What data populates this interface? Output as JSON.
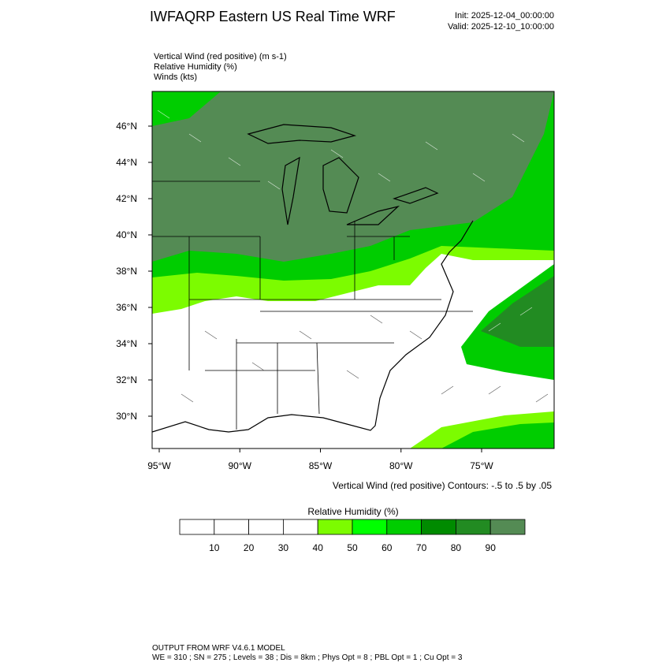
{
  "header": {
    "title": "IWFAQRP Eastern US Real Time WRF",
    "init": "Init: 2025-12-04_00:00:00",
    "valid": "Valid: 2025-12-10_10:00:00"
  },
  "fields": [
    "Vertical Wind (red positive)   (m s-1)",
    "Relative Humidity   (%)",
    "Winds   (kts)"
  ],
  "map": {
    "lon_ticks": [
      {
        "value": -95,
        "label": "95°W"
      },
      {
        "value": -90,
        "label": "90°W"
      },
      {
        "value": -85,
        "label": "85°W"
      },
      {
        "value": -80,
        "label": "80°W"
      },
      {
        "value": -75,
        "label": "75°W"
      }
    ],
    "lat_ticks": [
      {
        "value": 46,
        "label": "46°N"
      },
      {
        "value": 44,
        "label": "44°N"
      },
      {
        "value": 42,
        "label": "42°N"
      },
      {
        "value": 40,
        "label": "40°N"
      },
      {
        "value": 38,
        "label": "38°N"
      },
      {
        "value": 36,
        "label": "36°N"
      },
      {
        "value": 34,
        "label": "34°N"
      },
      {
        "value": 32,
        "label": "32°N"
      },
      {
        "value": 30,
        "label": "30°N"
      }
    ],
    "contour_note": "Vertical Wind (red positive) Contours: -.5 to .5 by .05"
  },
  "colorbar": {
    "title": "Relative Humidity  (%)",
    "levels": [
      10,
      20,
      30,
      40,
      50,
      60,
      70,
      80,
      90
    ],
    "colors": [
      "#ffffff",
      "#ffffff",
      "#ffffff",
      "#ffffff",
      "#7cfc00",
      "#00ff00",
      "#00cd00",
      "#008b00",
      "#228b22",
      "#548b54"
    ]
  },
  "footer": {
    "line1": "OUTPUT FROM WRF V4.6.1 MODEL",
    "line2": "WE = 310 ; SN = 275 ; Levels = 38 ; Dis = 8km ; Phys Opt = 8 ; PBL Opt = 1 ; Cu Opt = 3"
  }
}
